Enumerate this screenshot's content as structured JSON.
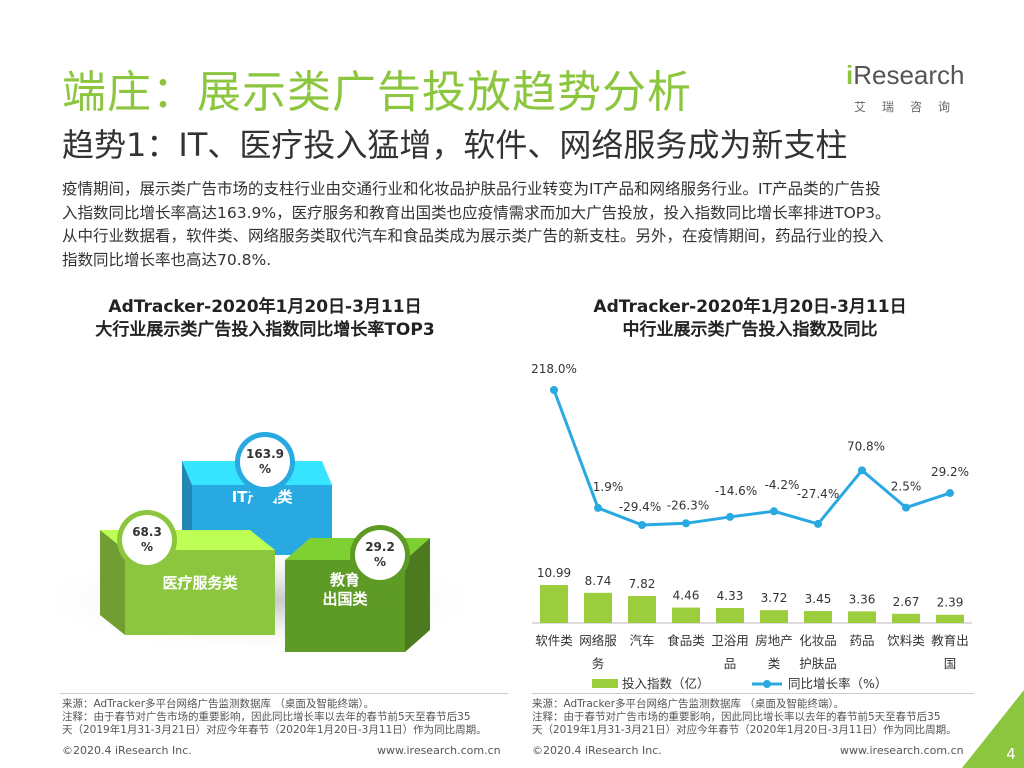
{
  "title": "端庄：展示类广告投放趋势分析",
  "subtitle": "趋势1：IT、医疗投入猛增，软件、网络服务成为新支柱",
  "logo": {
    "name": "iResearch",
    "cn": "艾瑞咨询"
  },
  "intro": [
    "疫情期间，展示类广告市场的支柱行业由交通行业和化妆品护肤品行业转变为IT产品和网络服务行业。IT产品类的广告投",
    "入指数同比增长率高达163.9%，医疗服务和教育出国类也应疫情需求而加大广告投放，投入指数同比增长率排进TOP3。",
    "从中行业数据看，软件类、网络服务类取代汽车和食品类成为展示类广告的新支柱。另外，在疫情期间，药品行业的投入",
    "指数同比增长率也高达70.8%."
  ],
  "colors": {
    "green": "#8cc63f",
    "dark_green": "#5e9a26",
    "blue": "#29a9e1",
    "teal": "#22c3c9",
    "bar_green": "#9ccd3c"
  },
  "left_chart": {
    "title1": "AdTracker-2020年1月20日-3月11日",
    "title2": "大行业展示类广告投入指数同比增长率TOP3"
  },
  "right_chart": {
    "title1": "AdTracker-2020年1月20日-3月11日",
    "title2": "中行业展示类广告投入指数及同比"
  },
  "chart_data": [
    {
      "type": "bar",
      "title": "AdTracker-2020年1月20日-3月11日 大行业展示类广告投入指数同比增长率TOP3",
      "categories": [
        "IT产品类",
        "医疗服务类",
        "教育出国类"
      ],
      "category_labels": [
        "IT产品类",
        "医疗服务类",
        "教育\n出国类"
      ],
      "values": [
        163.9,
        68.3,
        29.2
      ],
      "value_labels": [
        "163.9\n%",
        "68.3\n%",
        "29.2\n%"
      ],
      "colors": [
        "#29a9e1",
        "#8cc63f",
        "#5e9a26"
      ]
    },
    {
      "type": "bar+line",
      "title": "AdTracker-2020年1月20日-3月11日 中行业展示类广告投入指数及同比",
      "categories": [
        "软件类",
        "网络服务",
        "汽车",
        "食品类",
        "卫浴用品",
        "房地产类",
        "化妆品护肤品",
        "药品",
        "饮料类",
        "教育出国"
      ],
      "category_labels": [
        [
          "软件类"
        ],
        [
          "网络服",
          "务"
        ],
        [
          "汽车"
        ],
        [
          "食品类"
        ],
        [
          "卫浴用",
          "品"
        ],
        [
          "房地产",
          "类"
        ],
        [
          "化妆品",
          "护肤品"
        ],
        [
          "药品"
        ],
        [
          "饮料类"
        ],
        [
          "教育出",
          "国"
        ]
      ],
      "series": [
        {
          "name": "投入指数（亿）",
          "type": "bar",
          "values": [
            10.99,
            8.74,
            7.82,
            4.46,
            4.33,
            3.72,
            3.45,
            3.36,
            2.67,
            2.39
          ],
          "labels": [
            "10.99",
            "8.74",
            "7.82",
            "4.46",
            "4.33",
            "3.72",
            "3.45",
            "3.36",
            "2.67",
            "2.39"
          ]
        },
        {
          "name": "同比增长率（%）",
          "type": "line",
          "values": [
            218.0,
            1.9,
            -29.4,
            -26.3,
            -14.6,
            -4.2,
            -27.4,
            70.8,
            2.5,
            29.2
          ],
          "labels": [
            "218.0%",
            "1.9%",
            "-29.4%",
            "-26.3%",
            "-14.6%",
            "-4.2%",
            "-27.4%",
            "70.8%",
            "2.5%",
            "29.2%"
          ]
        }
      ]
    }
  ],
  "notes": {
    "left": [
      "来源：AdTracker多平台网络广告监测数据库 （桌面及智能终端）。",
      "注释：由于春节对广告市场的重要影响，因此同比增长率以去年的春节前5天至春节后35",
      "天（2019年1月31-3月21日）对应今年春节（2020年1月20日-3月11日）作为同比周期。"
    ],
    "right": [
      "来源：AdTracker多平台网络广告监测数据库 （桌面及智能终端）。",
      "注释：由于春节对广告市场的重要影响，因此同比增长率以去年的春节前5天至春节后35",
      "天（2019年1月31-3月21日）对应今年春节（2020年1月20日-3月11日）作为同比周期。"
    ]
  },
  "footer": {
    "copyright_left": "©2020.4 iResearch Inc.",
    "url_left": "www.iresearch.com.cn",
    "copyright_right": "©2020.4 iResearch Inc.",
    "url_right": "www.iresearch.com.cn",
    "page": "4"
  }
}
